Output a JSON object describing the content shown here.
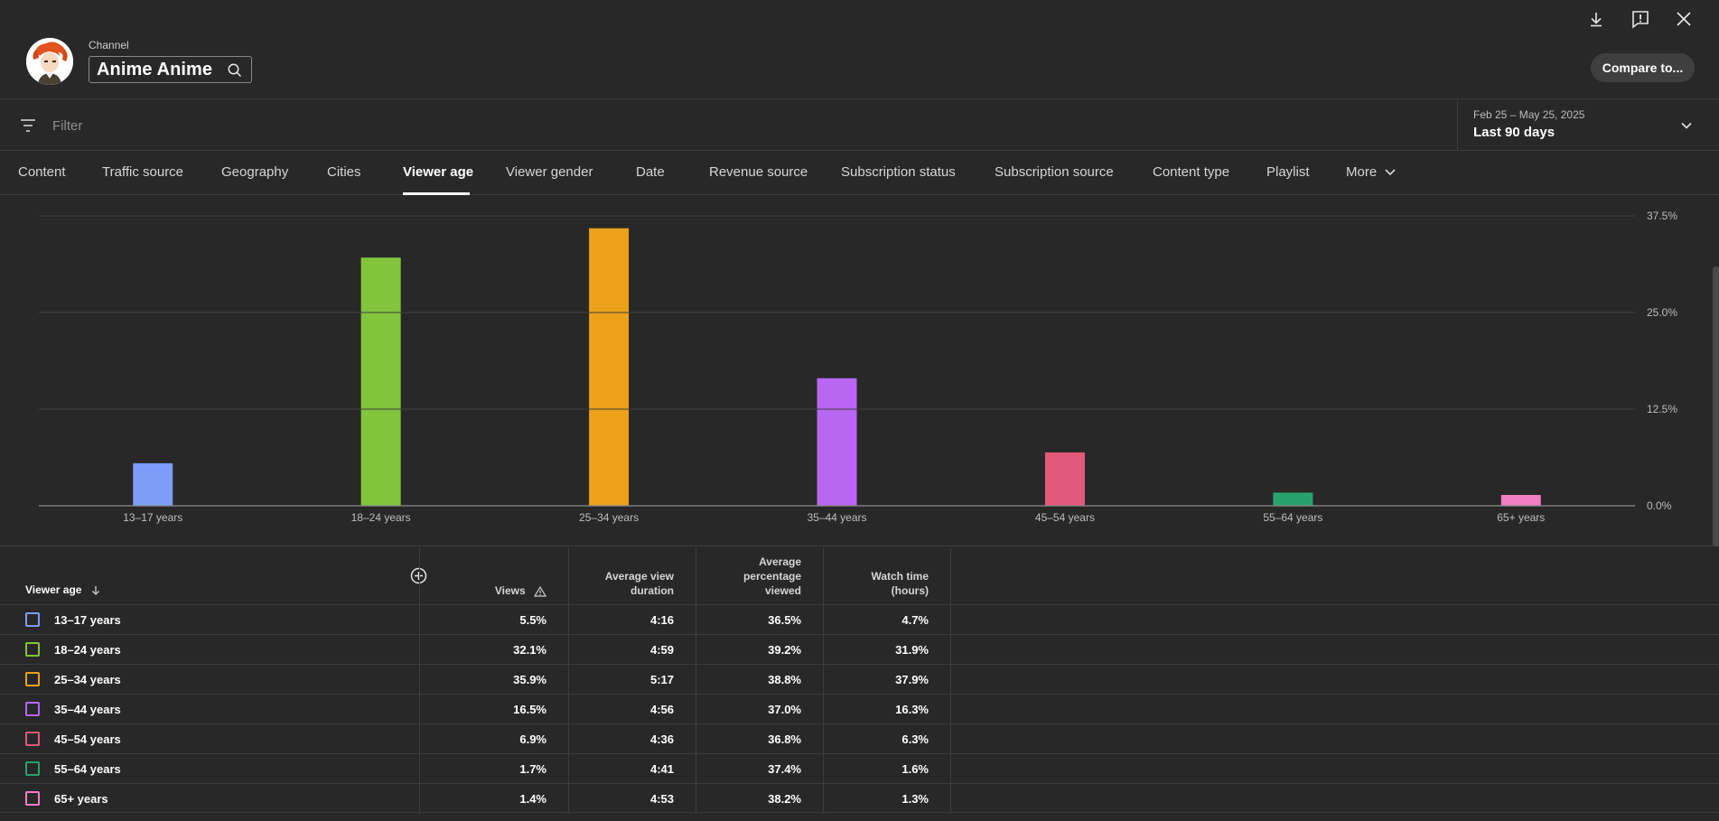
{
  "header": {
    "channel_caption": "Channel",
    "channel_name": "Anime Anime",
    "compare_label": "Compare to..."
  },
  "filter": {
    "placeholder": "Filter"
  },
  "date": {
    "range": "Feb 25 – May 25, 2025",
    "label": "Last 90 days"
  },
  "tabs": [
    {
      "label": "Content"
    },
    {
      "label": "Traffic source"
    },
    {
      "label": "Geography"
    },
    {
      "label": "Cities"
    },
    {
      "label": "Viewer age"
    },
    {
      "label": "Viewer gender"
    },
    {
      "label": "Date"
    },
    {
      "label": "Revenue source"
    },
    {
      "label": "Subscription status"
    },
    {
      "label": "Subscription source"
    },
    {
      "label": "Content type"
    },
    {
      "label": "Playlist"
    },
    {
      "label": "More"
    }
  ],
  "chart_data": {
    "type": "bar",
    "categories": [
      "13–17 years",
      "18–24 years",
      "25–34 years",
      "35–44 years",
      "45–54 years",
      "55–64 years",
      "65+ years"
    ],
    "values": [
      5.5,
      32.1,
      35.9,
      16.5,
      6.9,
      1.7,
      1.4
    ],
    "colors": [
      "#7e9cf8",
      "#82c43b",
      "#eba11a",
      "#b966f2",
      "#e15a7b",
      "#28a26d",
      "#f27fc2"
    ],
    "ylim": [
      0,
      37.5
    ],
    "yticks": [
      "0.0%",
      "12.5%",
      "25.0%",
      "37.5%"
    ],
    "ytick_values": [
      0,
      12.5,
      25,
      37.5
    ],
    "grid": true
  },
  "table": {
    "headers": {
      "first": "Viewer age",
      "views": "Views",
      "avg_duration": [
        "Average view",
        "duration"
      ],
      "avg_pct": [
        "Average",
        "percentage",
        "viewed"
      ],
      "watch_time": [
        "Watch time",
        "(hours)"
      ]
    },
    "rows": [
      {
        "label": "13–17 years",
        "views": "5.5%",
        "duration": "4:16",
        "pct": "36.5%",
        "watch": "4.7%"
      },
      {
        "label": "18–24 years",
        "views": "32.1%",
        "duration": "4:59",
        "pct": "39.2%",
        "watch": "31.9%"
      },
      {
        "label": "25–34 years",
        "views": "35.9%",
        "duration": "5:17",
        "pct": "38.8%",
        "watch": "37.9%"
      },
      {
        "label": "35–44 years",
        "views": "16.5%",
        "duration": "4:56",
        "pct": "37.0%",
        "watch": "16.3%"
      },
      {
        "label": "45–54 years",
        "views": "6.9%",
        "duration": "4:36",
        "pct": "36.8%",
        "watch": "6.3%"
      },
      {
        "label": "55–64 years",
        "views": "1.7%",
        "duration": "4:41",
        "pct": "37.4%",
        "watch": "1.6%"
      },
      {
        "label": "65+ years",
        "views": "1.4%",
        "duration": "4:53",
        "pct": "38.2%",
        "watch": "1.3%"
      }
    ]
  },
  "icons": {
    "download": "download-icon",
    "feedback": "feedback-icon",
    "close": "close-icon",
    "search": "search-icon",
    "filter": "filter-icon",
    "chevron": "chevron-down-icon",
    "warning": "warning-icon",
    "add_column": "add-circle-icon",
    "sort": "arrow-down-icon"
  }
}
